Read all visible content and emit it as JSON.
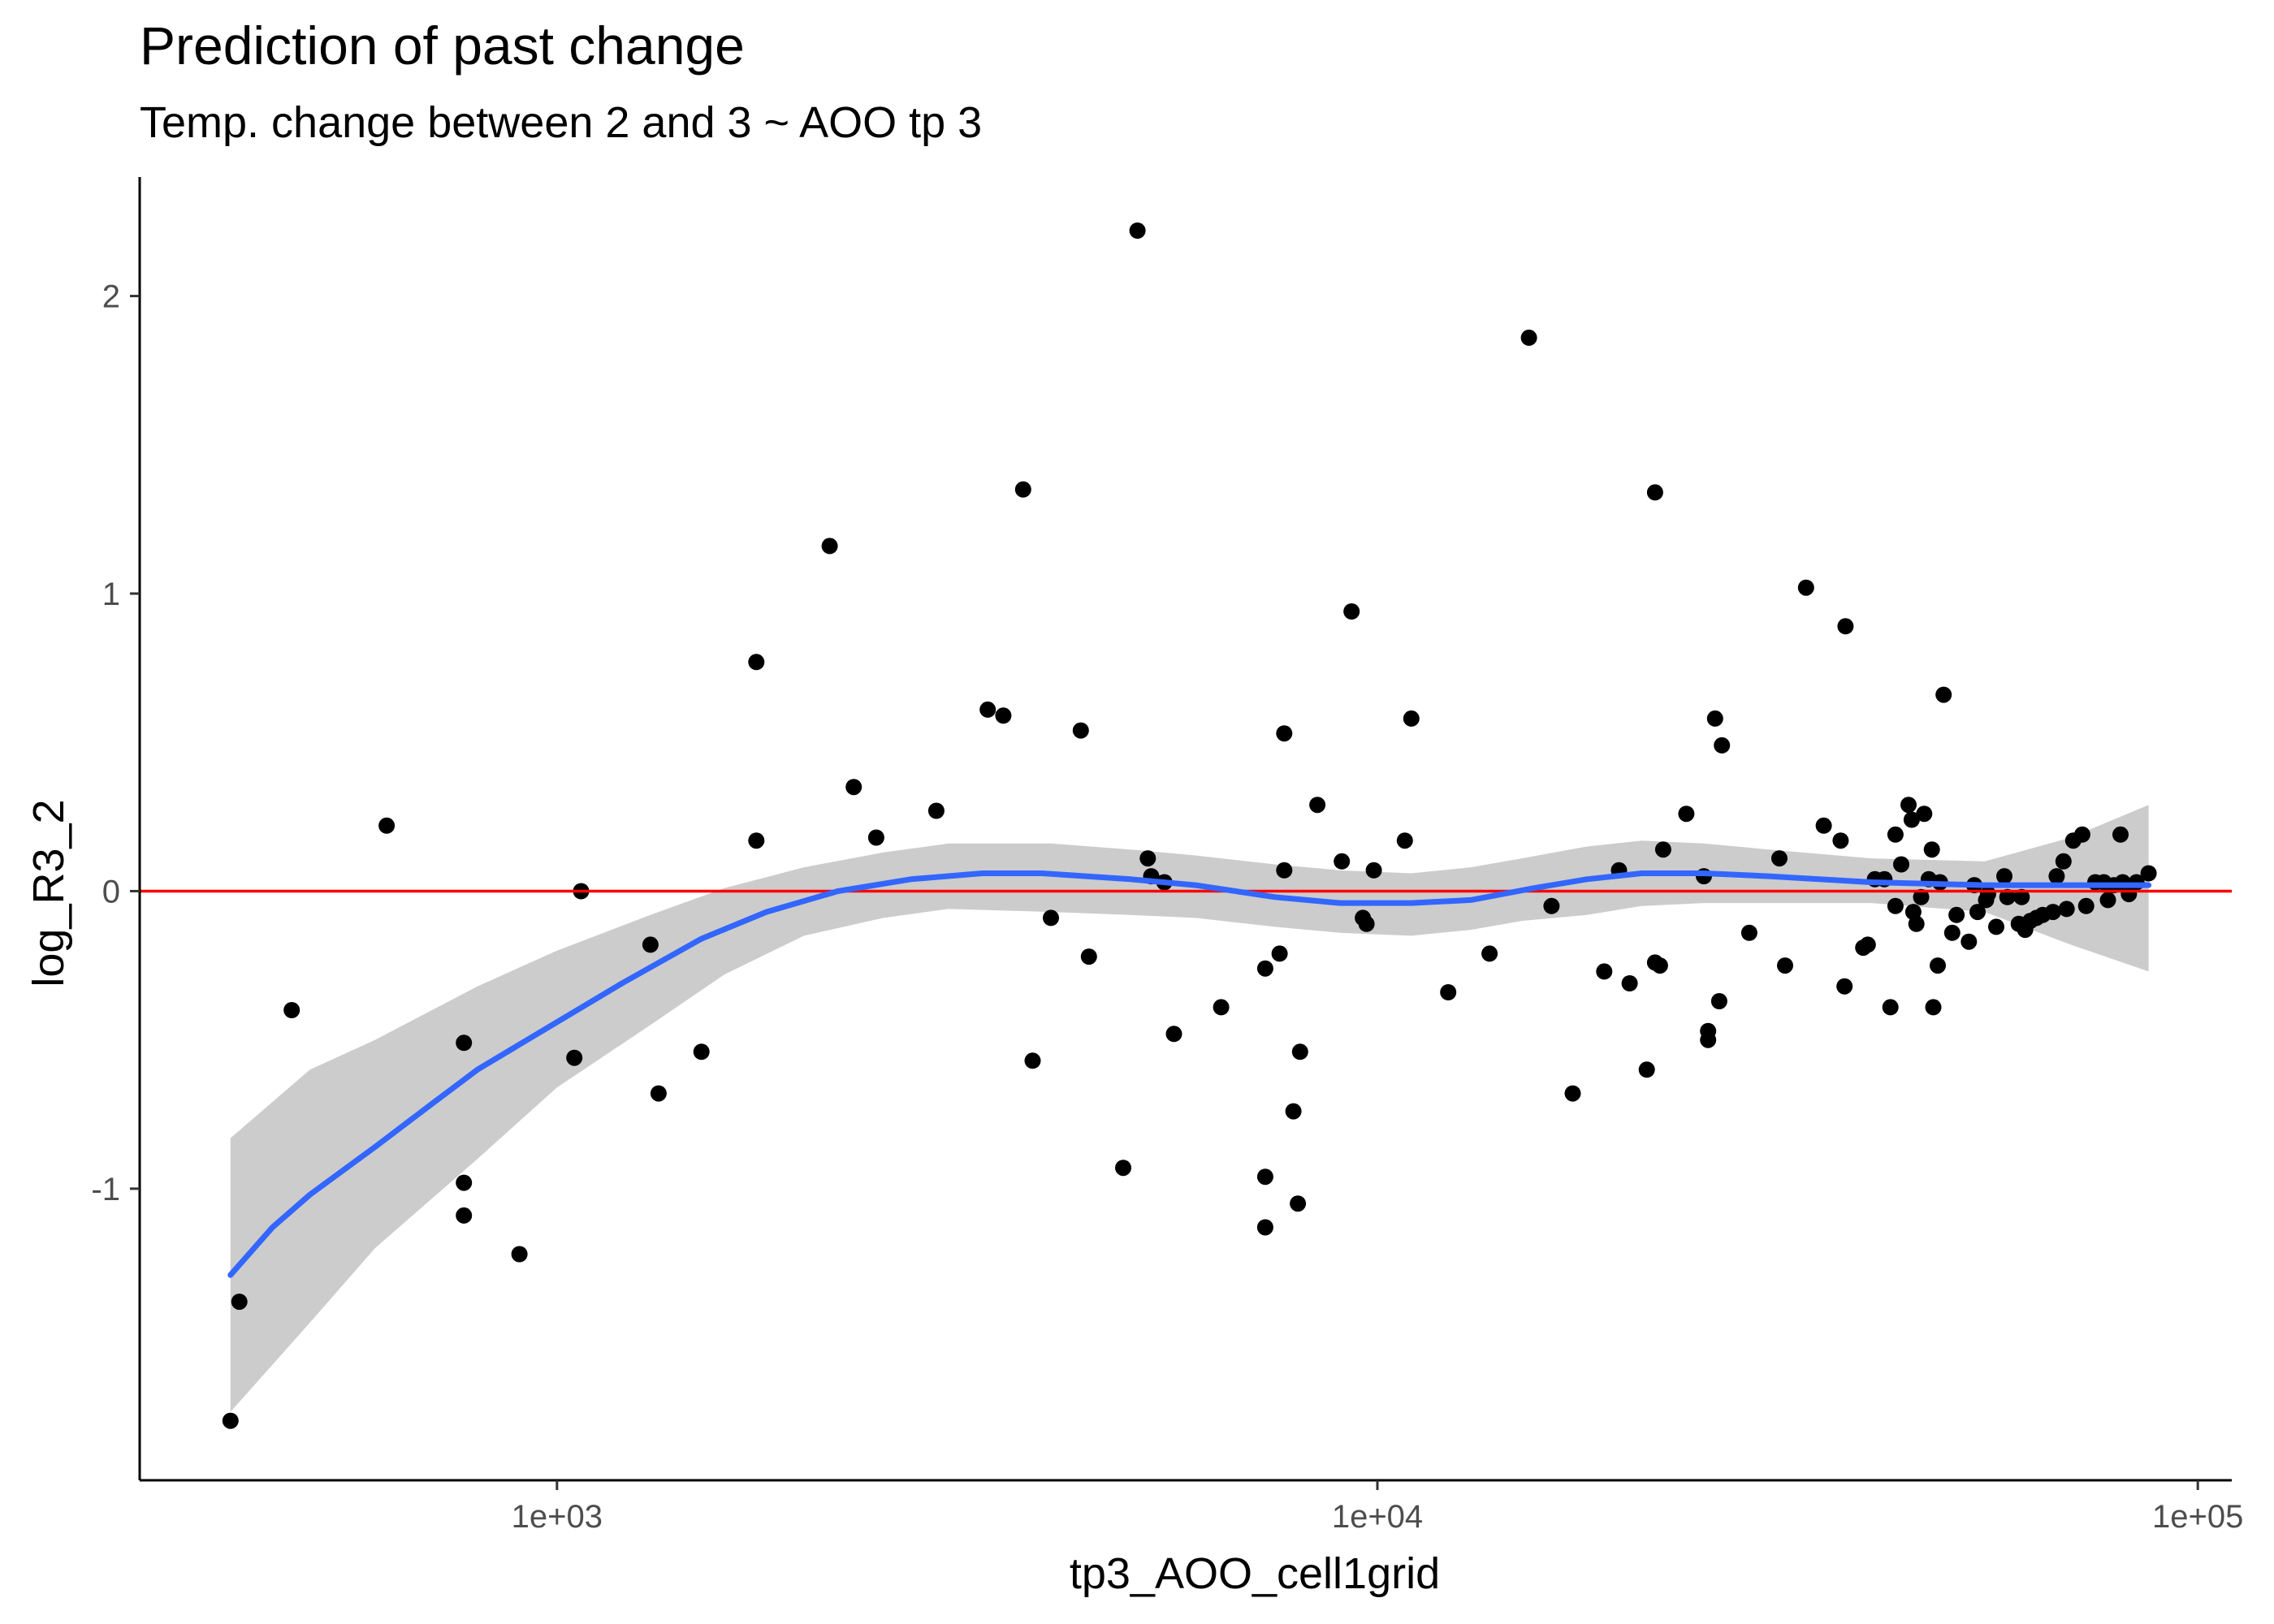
{
  "chart_data": {
    "type": "scatter",
    "title": "Prediction of past change",
    "subtitle": "Temp. change between 2 and 3 ~ AOO tp 3",
    "xlabel": "tp3_AOO_cell1grid",
    "ylabel": "log_R3_2",
    "x_scale": "log10",
    "xlim": [
      310,
      110000
    ],
    "ylim": [
      -1.98,
      2.4
    ],
    "x_ticks": [
      1000,
      10000,
      100000
    ],
    "x_tick_labels": [
      "1e+03",
      "1e+04",
      "1e+05"
    ],
    "y_ticks": [
      -1,
      0,
      1,
      2
    ],
    "y_tick_labels": [
      "-1",
      "0",
      "1",
      "2"
    ],
    "grid": false,
    "reference_line": {
      "y": 0,
      "color": "#ff0000"
    },
    "colors": {
      "points": "#000000",
      "smooth": "#3366ff",
      "ribbon": "#cccccc"
    },
    "points": [
      [
        400,
        -1.78
      ],
      [
        410,
        -1.38
      ],
      [
        475,
        -0.4
      ],
      [
        620,
        0.22
      ],
      [
        770,
        -0.51
      ],
      [
        770,
        -0.98
      ],
      [
        770,
        -1.09
      ],
      [
        900,
        -1.22
      ],
      [
        1050,
        -0.56
      ],
      [
        1070,
        0.0
      ],
      [
        1300,
        -0.18
      ],
      [
        1330,
        -0.68
      ],
      [
        1500,
        -0.54
      ],
      [
        1750,
        0.77
      ],
      [
        1750,
        0.17
      ],
      [
        2150,
        1.16
      ],
      [
        2300,
        0.35
      ],
      [
        2450,
        0.18
      ],
      [
        2900,
        0.27
      ],
      [
        3350,
        0.61
      ],
      [
        3500,
        0.59
      ],
      [
        3700,
        1.35
      ],
      [
        3800,
        -0.57
      ],
      [
        4000,
        -0.09
      ],
      [
        4350,
        0.54
      ],
      [
        4450,
        -0.22
      ],
      [
        4900,
        -0.93
      ],
      [
        5100,
        2.22
      ],
      [
        5250,
        0.11
      ],
      [
        5300,
        0.05
      ],
      [
        5500,
        0.03
      ],
      [
        5650,
        -0.48
      ],
      [
        6450,
        -0.39
      ],
      [
        7300,
        -0.96
      ],
      [
        7300,
        -1.13
      ],
      [
        7300,
        -0.26
      ],
      [
        7600,
        -0.21
      ],
      [
        7700,
        0.53
      ],
      [
        7700,
        0.07
      ],
      [
        7900,
        -0.74
      ],
      [
        8000,
        -1.05
      ],
      [
        8050,
        -0.54
      ],
      [
        8450,
        0.29
      ],
      [
        9050,
        0.1
      ],
      [
        9300,
        0.94
      ],
      [
        9600,
        -0.09
      ],
      [
        9700,
        -0.11
      ],
      [
        9900,
        0.07
      ],
      [
        10800,
        0.17
      ],
      [
        11000,
        0.58
      ],
      [
        12200,
        -0.34
      ],
      [
        13700,
        -0.21
      ],
      [
        15300,
        1.86
      ],
      [
        16300,
        -0.05
      ],
      [
        17300,
        -0.68
      ],
      [
        18900,
        -0.27
      ],
      [
        19700,
        0.07
      ],
      [
        20300,
        -0.31
      ],
      [
        21300,
        -0.6
      ],
      [
        21800,
        -0.24
      ],
      [
        22100,
        -0.25
      ],
      [
        21800,
        1.34
      ],
      [
        22300,
        0.14
      ],
      [
        23800,
        0.26
      ],
      [
        25000,
        0.05
      ],
      [
        25300,
        -0.47
      ],
      [
        25300,
        -0.5
      ],
      [
        25800,
        0.58
      ],
      [
        26100,
        -0.37
      ],
      [
        26300,
        0.49
      ],
      [
        28400,
        -0.14
      ],
      [
        30900,
        0.11
      ],
      [
        31400,
        -0.25
      ],
      [
        33300,
        1.02
      ],
      [
        35000,
        0.22
      ],
      [
        36700,
        0.17
      ],
      [
        37100,
        -0.32
      ],
      [
        37200,
        0.89
      ],
      [
        39100,
        -0.19
      ],
      [
        39600,
        -0.18
      ],
      [
        40400,
        0.04
      ],
      [
        41500,
        0.04
      ],
      [
        42200,
        -0.39
      ],
      [
        42800,
        0.19
      ],
      [
        42800,
        -0.05
      ],
      [
        43500,
        0.09
      ],
      [
        44400,
        0.29
      ],
      [
        44800,
        0.24
      ],
      [
        45000,
        -0.07
      ],
      [
        45400,
        -0.11
      ],
      [
        46000,
        -0.02
      ],
      [
        46400,
        0.26
      ],
      [
        47000,
        0.04
      ],
      [
        47400,
        0.14
      ],
      [
        47600,
        -0.39
      ],
      [
        48200,
        -0.25
      ],
      [
        48500,
        0.03
      ],
      [
        49000,
        0.66
      ],
      [
        50200,
        -0.14
      ],
      [
        50800,
        -0.08
      ],
      [
        52600,
        -0.17
      ],
      [
        53400,
        0.02
      ],
      [
        53900,
        -0.07
      ],
      [
        55200,
        -0.03
      ],
      [
        55500,
        -0.01
      ],
      [
        56800,
        -0.12
      ],
      [
        58100,
        0.05
      ],
      [
        58600,
        -0.02
      ],
      [
        60500,
        -0.11
      ],
      [
        61000,
        -0.02
      ],
      [
        61600,
        -0.13
      ],
      [
        62500,
        -0.1
      ],
      [
        63600,
        -0.09
      ],
      [
        64700,
        -0.08
      ],
      [
        66600,
        -0.07
      ],
      [
        67300,
        0.05
      ],
      [
        68600,
        0.1
      ],
      [
        69200,
        -0.06
      ],
      [
        70500,
        0.17
      ],
      [
        72300,
        0.19
      ],
      [
        73100,
        -0.05
      ],
      [
        75000,
        0.03
      ],
      [
        76800,
        0.03
      ],
      [
        77700,
        -0.03
      ],
      [
        79000,
        0.02
      ],
      [
        80500,
        0.19
      ],
      [
        81000,
        0.03
      ],
      [
        81800,
        0.02
      ],
      [
        82400,
        -0.01
      ],
      [
        84200,
        0.03
      ],
      [
        87100,
        0.06
      ]
    ],
    "smooth_line": [
      [
        400,
        -1.29
      ],
      [
        450,
        -1.13
      ],
      [
        500,
        -1.02
      ],
      [
        600,
        -0.86
      ],
      [
        700,
        -0.72
      ],
      [
        800,
        -0.6
      ],
      [
        1000,
        -0.44
      ],
      [
        1200,
        -0.31
      ],
      [
        1500,
        -0.16
      ],
      [
        1800,
        -0.07
      ],
      [
        2200,
        0.0
      ],
      [
        2700,
        0.04
      ],
      [
        3300,
        0.06
      ],
      [
        3900,
        0.06
      ],
      [
        5000,
        0.04
      ],
      [
        6000,
        0.02
      ],
      [
        7500,
        -0.02
      ],
      [
        9000,
        -0.04
      ],
      [
        11000,
        -0.04
      ],
      [
        13000,
        -0.03
      ],
      [
        15500,
        0.01
      ],
      [
        18000,
        0.04
      ],
      [
        21000,
        0.06
      ],
      [
        25000,
        0.06
      ],
      [
        30000,
        0.05
      ],
      [
        40000,
        0.03
      ],
      [
        55000,
        0.02
      ],
      [
        70000,
        0.02
      ],
      [
        87100,
        0.02
      ]
    ],
    "confidence_band": [
      [
        400,
        -1.75,
        -0.83
      ],
      [
        500,
        -1.45,
        -0.6
      ],
      [
        600,
        -1.2,
        -0.5
      ],
      [
        800,
        -0.9,
        -0.32
      ],
      [
        1000,
        -0.66,
        -0.2
      ],
      [
        1300,
        -0.45,
        -0.08
      ],
      [
        1600,
        -0.28,
        0.01
      ],
      [
        2000,
        -0.15,
        0.08
      ],
      [
        2500,
        -0.09,
        0.13
      ],
      [
        3000,
        -0.06,
        0.16
      ],
      [
        4000,
        -0.07,
        0.16
      ],
      [
        5000,
        -0.08,
        0.14
      ],
      [
        6000,
        -0.09,
        0.12
      ],
      [
        7500,
        -0.12,
        0.09
      ],
      [
        9000,
        -0.14,
        0.07
      ],
      [
        11000,
        -0.15,
        0.06
      ],
      [
        13000,
        -0.13,
        0.08
      ],
      [
        15000,
        -0.1,
        0.11
      ],
      [
        18000,
        -0.08,
        0.15
      ],
      [
        21000,
        -0.05,
        0.17
      ],
      [
        25000,
        -0.04,
        0.16
      ],
      [
        30000,
        -0.04,
        0.14
      ],
      [
        40000,
        -0.04,
        0.11
      ],
      [
        55000,
        -0.07,
        0.1
      ],
      [
        70000,
        -0.18,
        0.18
      ],
      [
        87100,
        -0.27,
        0.29
      ]
    ]
  }
}
